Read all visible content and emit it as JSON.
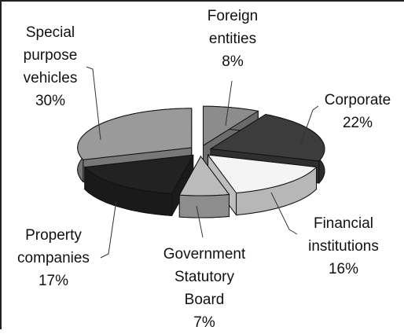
{
  "chart_data": {
    "type": "pie3d",
    "categories": [
      "Foreign entities",
      "Corporate",
      "Financial institutions",
      "Government Statutory Board",
      "Property companies",
      "Special purpose vehicles"
    ],
    "values": [
      8,
      22,
      16,
      7,
      17,
      30
    ],
    "value_labels": [
      "8%",
      "22%",
      "16%",
      "7%",
      "17%",
      "30%"
    ],
    "colors": [
      "#8c8c8c",
      "#3c3c3c",
      "#f4f4f4",
      "#bcbcbc",
      "#222222",
      "#9a9a9a"
    ]
  }
}
